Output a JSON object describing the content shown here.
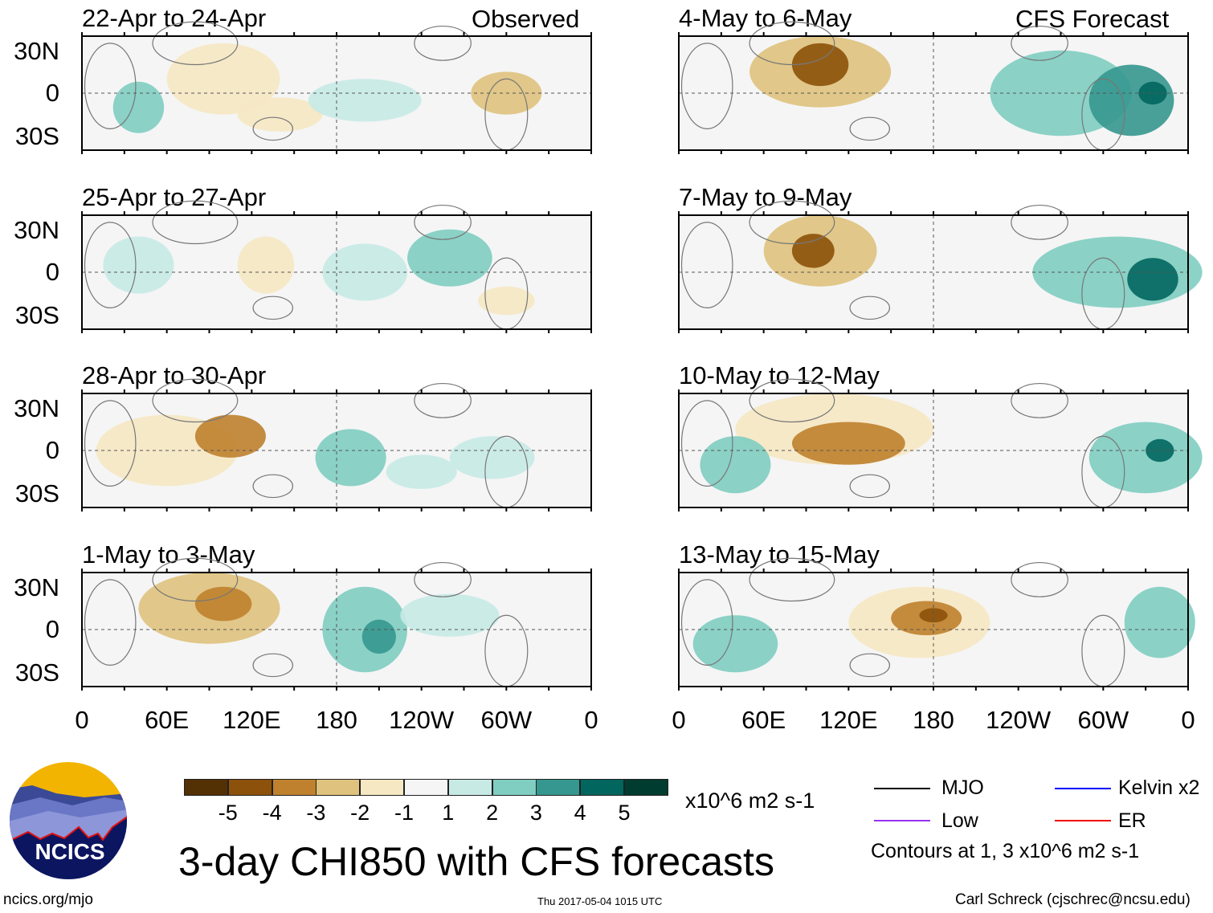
{
  "headers": {
    "observed": "Observed",
    "forecast": "CFS Forecast"
  },
  "panels_left": [
    {
      "title": "22-Apr to 24-Apr"
    },
    {
      "title": "25-Apr to 27-Apr"
    },
    {
      "title": "28-Apr to 30-Apr"
    },
    {
      "title": "1-May to 3-May"
    }
  ],
  "panels_right": [
    {
      "title": "4-May to 6-May"
    },
    {
      "title": "7-May to 9-May"
    },
    {
      "title": "10-May to 12-May"
    },
    {
      "title": "13-May to 15-May"
    }
  ],
  "lat_labels": [
    "30N",
    "0",
    "30S"
  ],
  "lon_labels": [
    "0",
    "60E",
    "120E",
    "180",
    "120W",
    "60W",
    "0"
  ],
  "colorbar": {
    "colors": [
      "#543005",
      "#8c510a",
      "#bf812d",
      "#dfc27d",
      "#f6e8c3",
      "#f5f5f5",
      "#c7eae5",
      "#80cdc1",
      "#35978f",
      "#01665e",
      "#003c30"
    ],
    "labels": [
      "-5",
      "-4",
      "-3",
      "-2",
      "-1",
      "1",
      "2",
      "3",
      "4",
      "5"
    ],
    "units": "x10^6 m2 s-1"
  },
  "legend": {
    "items": [
      {
        "label": "MJO",
        "color": "#000000"
      },
      {
        "label": "Kelvin x2",
        "color": "#0000ff"
      },
      {
        "label": "Low",
        "color": "#9933ee"
      },
      {
        "label": "ER",
        "color": "#ee0000"
      }
    ],
    "note": "Contours at 1, 3 x10^6 m2 s-1"
  },
  "main_title": "3-day CHI850 with CFS forecasts",
  "logo_text": "NCICS",
  "footer": {
    "url": "ncics.org/mjo",
    "timestamp": "Thu 2017-05-04 1015 UTC",
    "credit": "Carl Schreck (cjschrec@ncsu.edu)"
  }
}
